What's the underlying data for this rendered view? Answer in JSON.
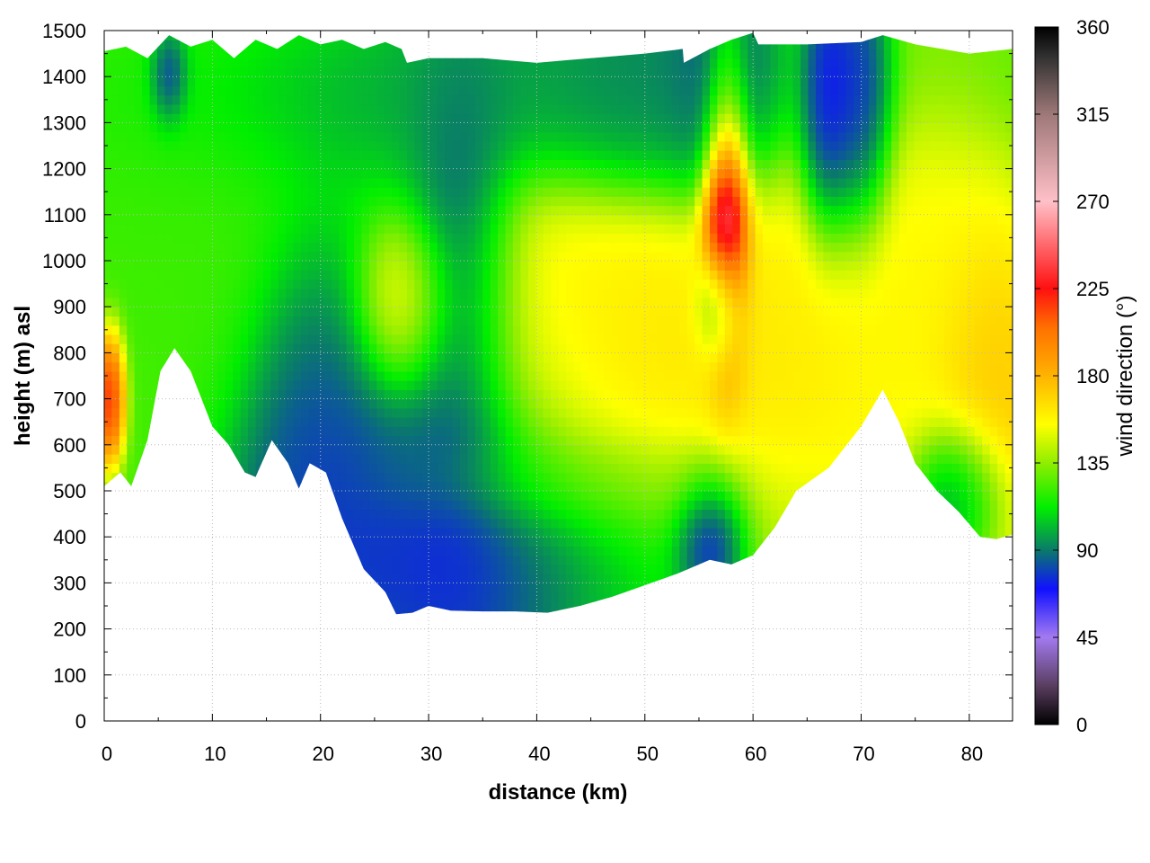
{
  "chart_data": {
    "type": "heatmap",
    "title": "",
    "xlabel": "distance (km)",
    "ylabel": "height (m) asl",
    "colorbar_label": "wind direction (°)",
    "xlim": [
      0,
      84
    ],
    "ylim": [
      0,
      1500
    ],
    "clim": [
      0,
      360
    ],
    "x_ticks": [
      0,
      10,
      20,
      30,
      40,
      50,
      60,
      70,
      80
    ],
    "y_ticks": [
      0,
      100,
      200,
      300,
      400,
      500,
      600,
      700,
      800,
      900,
      1000,
      1100,
      1200,
      1300,
      1400,
      1500
    ],
    "colorbar_ticks": [
      0,
      45,
      90,
      135,
      180,
      225,
      270,
      315,
      360
    ],
    "grid": true,
    "colormap": [
      {
        "v": 0,
        "c": "#000000"
      },
      {
        "v": 20,
        "c": "#5a3e60"
      },
      {
        "v": 45,
        "c": "#a37af0"
      },
      {
        "v": 70,
        "c": "#1010ff"
      },
      {
        "v": 90,
        "c": "#0a7a6a"
      },
      {
        "v": 112,
        "c": "#00ee00"
      },
      {
        "v": 135,
        "c": "#90ee00"
      },
      {
        "v": 155,
        "c": "#ffff00"
      },
      {
        "v": 180,
        "c": "#ffb300"
      },
      {
        "v": 205,
        "c": "#ff7000"
      },
      {
        "v": 225,
        "c": "#ff1010"
      },
      {
        "v": 270,
        "c": "#ffc0c8"
      },
      {
        "v": 315,
        "c": "#9e7878"
      },
      {
        "v": 345,
        "c": "#303030"
      },
      {
        "v": 360,
        "c": "#000000"
      }
    ],
    "terrain": {
      "x": [
        0,
        1.5,
        2.5,
        4,
        5.2,
        6.5,
        8,
        10,
        11.5,
        13,
        14,
        15.5,
        17,
        18,
        19,
        20.5,
        22,
        24,
        26,
        27,
        28.5,
        30,
        32,
        35,
        38,
        41,
        44,
        47,
        50,
        53,
        56,
        58,
        60,
        62,
        64,
        67,
        70,
        72,
        73.5,
        75,
        77,
        79,
        81,
        82.5,
        84
      ],
      "height": [
        510,
        540,
        510,
        610,
        760,
        810,
        760,
        640,
        600,
        540,
        530,
        610,
        560,
        505,
        560,
        540,
        440,
        330,
        280,
        232,
        235,
        250,
        240,
        238,
        238,
        235,
        250,
        270,
        295,
        320,
        350,
        340,
        360,
        420,
        500,
        550,
        640,
        720,
        650,
        560,
        500,
        455,
        400,
        395,
        405
      ]
    },
    "top_boundary": {
      "x": [
        0,
        2,
        4,
        6,
        8,
        10,
        12,
        14,
        16,
        18,
        20,
        22,
        24,
        26,
        27.5,
        28,
        30,
        35,
        40,
        45,
        50,
        53.5,
        53.6,
        56,
        58,
        60,
        60.5,
        65,
        70,
        72,
        75,
        80,
        84
      ],
      "height": [
        1455,
        1465,
        1440,
        1490,
        1465,
        1480,
        1440,
        1480,
        1460,
        1490,
        1470,
        1480,
        1460,
        1475,
        1460,
        1430,
        1440,
        1440,
        1430,
        1440,
        1450,
        1460,
        1430,
        1460,
        1480,
        1495,
        1470,
        1470,
        1475,
        1490,
        1470,
        1450,
        1460
      ]
    },
    "wind_direction_field": {
      "background": 130,
      "blobs": [
        {
          "x": 4,
          "z": 1200,
          "sx": 12,
          "sz": 300,
          "v": 120
        },
        {
          "x": 35,
          "z": 1350,
          "sx": 18,
          "sz": 120,
          "v": 92
        },
        {
          "x": 50,
          "z": 1380,
          "sx": 5,
          "sz": 120,
          "v": 88
        },
        {
          "x": 57,
          "z": 1380,
          "sx": 3,
          "sz": 140,
          "v": 70
        },
        {
          "x": 20,
          "z": 600,
          "sx": 3.5,
          "sz": 280,
          "v": 75
        },
        {
          "x": 30,
          "z": 450,
          "sx": 9,
          "sz": 250,
          "v": 70
        },
        {
          "x": 40,
          "z": 380,
          "sx": 12,
          "sz": 140,
          "v": 72
        },
        {
          "x": 33,
          "z": 850,
          "sx": 3,
          "sz": 300,
          "v": 55
        },
        {
          "x": 28,
          "z": 900,
          "sx": 2.5,
          "sz": 100,
          "v": 175
        },
        {
          "x": 40,
          "z": 850,
          "sx": 8,
          "sz": 200,
          "v": 160
        },
        {
          "x": 48,
          "z": 650,
          "sx": 7,
          "sz": 250,
          "v": 170
        },
        {
          "x": 62,
          "z": 750,
          "sx": 6,
          "sz": 300,
          "v": 165
        },
        {
          "x": 75,
          "z": 900,
          "sx": 5,
          "sz": 250,
          "v": 160
        },
        {
          "x": 82,
          "z": 700,
          "sx": 3,
          "sz": 200,
          "v": 180
        },
        {
          "x": 43,
          "z": 520,
          "sx": 8,
          "sz": 60,
          "v": 130
        },
        {
          "x": 56,
          "z": 400,
          "sx": 2,
          "sz": 90,
          "v": 25
        },
        {
          "x": 57.5,
          "z": 1100,
          "sx": 1.2,
          "sz": 200,
          "v": 320
        },
        {
          "x": 57,
          "z": 900,
          "sx": 1.2,
          "sz": 80,
          "v": 60
        },
        {
          "x": 67,
          "z": 1300,
          "sx": 1.5,
          "sz": 150,
          "v": 50
        },
        {
          "x": 70,
          "z": 1300,
          "sx": 1.6,
          "sz": 150,
          "v": 60
        },
        {
          "x": 79,
          "z": 500,
          "sx": 2.5,
          "sz": 90,
          "v": 70
        },
        {
          "x": 6,
          "z": 1400,
          "sx": 1,
          "sz": 60,
          "v": 50
        },
        {
          "x": 0.5,
          "z": 720,
          "sx": 0.8,
          "sz": 80,
          "v": 250
        }
      ]
    }
  }
}
